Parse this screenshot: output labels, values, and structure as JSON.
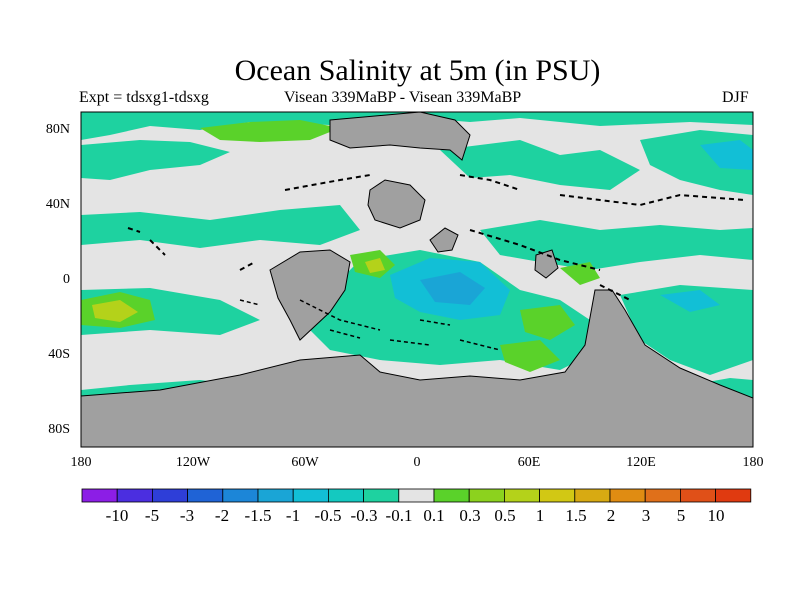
{
  "title": "Ocean Salinity at 5m (in PSU)",
  "subtitle_left": "Expt = tdsxg1-tdsxg",
  "subtitle_center": "Visean 339MaBP - Visean 339MaBP",
  "subtitle_right": "DJF",
  "y_ticks": [
    "80N",
    "40N",
    "0",
    "40S",
    "80S"
  ],
  "x_ticks": [
    "180",
    "120W",
    "60W",
    "0",
    "60E",
    "120E",
    "180"
  ],
  "colorbar": {
    "labels": [
      "-10",
      "-5",
      "-3",
      "-2",
      "-1.5",
      "-1",
      "-0.5",
      "-0.3",
      "-0.1",
      "0.1",
      "0.3",
      "0.5",
      "1",
      "1.5",
      "2",
      "3",
      "5",
      "10"
    ],
    "colors": [
      "#8c1ee6",
      "#4b2ee0",
      "#2e3ed8",
      "#1f63d6",
      "#1c86d8",
      "#1aa5d6",
      "#12bfd6",
      "#14c9c0",
      "#1ed2a0",
      "#e4e4e4",
      "#5ad22a",
      "#8cd21e",
      "#b4d21a",
      "#d2c814",
      "#d8aa12",
      "#e08c12",
      "#e0701a",
      "#e05018",
      "#e03a10"
    ]
  },
  "map_colors": {
    "ocean_background": "#e4e4e4",
    "land": "#a0a0a0",
    "teal": "#1ed2a0",
    "cyan": "#12bfd6",
    "blue": "#1aa5d6",
    "green": "#5ad22a",
    "yellow": "#b4d21a"
  }
}
